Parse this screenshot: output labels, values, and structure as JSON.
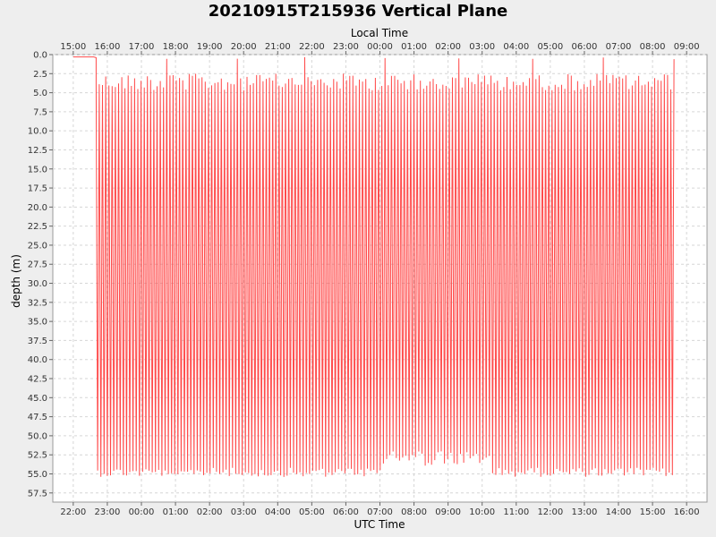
{
  "chart_data": {
    "type": "line",
    "title": "20210915T215936 Vertical Plane",
    "xlabel": "UTC Time",
    "x2label": "Local Time",
    "ylabel": "depth (m)",
    "y_inverted": true,
    "ylim": [
      0,
      58.7
    ],
    "xlim_hours_from_22utc": [
      -0.6,
      18.6
    ],
    "x_ticks_utc": [
      "22:00",
      "23:00",
      "00:00",
      "01:00",
      "02:00",
      "03:00",
      "04:00",
      "05:00",
      "06:00",
      "07:00",
      "08:00",
      "09:00",
      "10:00",
      "11:00",
      "12:00",
      "13:00",
      "14:00",
      "15:00",
      "16:00"
    ],
    "x_ticks_local": [
      "15:00",
      "16:00",
      "17:00",
      "18:00",
      "19:00",
      "20:00",
      "21:00",
      "22:00",
      "23:00",
      "00:00",
      "01:00",
      "02:00",
      "03:00",
      "04:00",
      "05:00",
      "06:00",
      "07:00",
      "08:00",
      "09:00"
    ],
    "y_ticks": [
      "0.0",
      "2.5",
      "5.0",
      "7.5",
      "10.0",
      "12.5",
      "15.0",
      "17.5",
      "20.0",
      "22.5",
      "25.0",
      "27.5",
      "30.0",
      "32.5",
      "35.0",
      "37.5",
      "40.0",
      "42.5",
      "45.0",
      "47.5",
      "50.0",
      "52.5",
      "55.0",
      "57.5"
    ],
    "grid": true,
    "series": [
      {
        "color": "#ff4a4a",
        "x_start_hours": 0.67,
        "x_end_hours": 17.63,
        "dive_cycles_approx": 180,
        "min_depth_m": 0.3,
        "max_depth_m": 55.4,
        "x_hours": [
          0.0,
          0.6,
          0.67
        ],
        "y": [
          0.3,
          0.3,
          0.4
        ]
      }
    ]
  }
}
